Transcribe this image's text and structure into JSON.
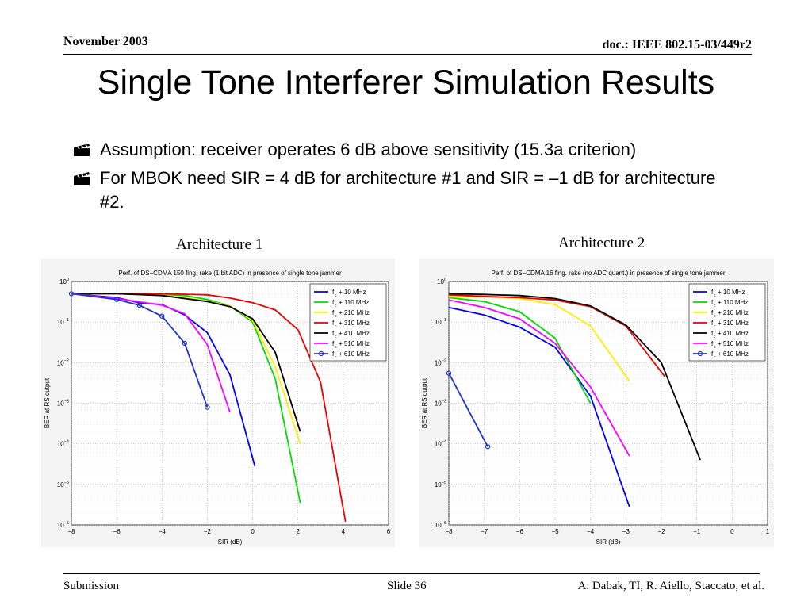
{
  "header": {
    "date": "November 2003",
    "doc": "doc.: IEEE 802.15-03/449r2"
  },
  "slide_title": "Single Tone Interferer Simulation Results",
  "bullets": [
    "Assumption: receiver operates 6 dB above sensitivity (15.3a criterion)",
    "For MBOK need SIR = 4 dB for architecture #1 and SIR = –1 dB for architecture #2."
  ],
  "bullet_icon": "clapperboard-icon",
  "captions": [
    "Architecture 1",
    "Architecture 2"
  ],
  "footer": {
    "left": "Submission",
    "center": "Slide 36",
    "right": "A. Dabak, TI, R. Aiello, Staccato, et al."
  },
  "chart_data": [
    {
      "type": "line",
      "title": "Perf. of DS−CDMA 150 fing. rake (1 bit ADC) in presence of single tone jammer",
      "xlabel": "SIR (dB)",
      "ylabel": "BER at RS output",
      "xlim": [
        -8,
        6
      ],
      "ylim_exp": [
        -6,
        0
      ],
      "yscale": "log",
      "grid": true,
      "legend_position": "top-right",
      "xticks": [
        "−8",
        "−6",
        "−4",
        "−2",
        "0",
        "2",
        "4",
        "6"
      ],
      "series": [
        {
          "name": "+ 10 MHz",
          "color": "#0000ff",
          "marker": false,
          "x": [
            -8,
            -6,
            -5,
            -4,
            -3,
            -2,
            -1,
            0.1
          ],
          "y": [
            0.5,
            0.4,
            0.3,
            0.27,
            0.15,
            0.055,
            0.005,
            2.8e-05
          ]
        },
        {
          "name": "+ 110 MHz",
          "color": "#00dd00",
          "marker": false,
          "x": [
            -8,
            -6,
            -4,
            -3,
            -2,
            -1,
            0,
            1,
            2.1
          ],
          "y": [
            0.5,
            0.5,
            0.48,
            0.45,
            0.36,
            0.25,
            0.1,
            0.004,
            3.5e-06
          ]
        },
        {
          "name": "+ 210 MHz",
          "color": "#ffee00",
          "marker": false,
          "x": [
            -8,
            -6,
            -4,
            -3,
            -2,
            -1,
            0,
            1,
            2.1
          ],
          "y": [
            0.5,
            0.5,
            0.46,
            0.4,
            0.33,
            0.25,
            0.11,
            0.008,
            0.0001
          ]
        },
        {
          "name": "+ 310 MHz",
          "color": "#ee0000",
          "marker": false,
          "x": [
            -8,
            -6,
            -4,
            -2,
            -1,
            0,
            1,
            2,
            3,
            4.1
          ],
          "y": [
            0.5,
            0.5,
            0.5,
            0.47,
            0.39,
            0.3,
            0.2,
            0.065,
            0.0033,
            1.2e-06
          ]
        },
        {
          "name": "+ 410 MHz",
          "color": "#000000",
          "marker": false,
          "x": [
            -8,
            -6,
            -4,
            -3,
            -2,
            -1,
            0,
            1,
            2.1
          ],
          "y": [
            0.5,
            0.5,
            0.45,
            0.38,
            0.32,
            0.24,
            0.12,
            0.018,
            0.0002
          ]
        },
        {
          "name": "+ 510 MHz",
          "color": "#ff00ff",
          "marker": false,
          "x": [
            -8,
            -6,
            -4,
            -3,
            -2,
            -1
          ],
          "y": [
            0.5,
            0.38,
            0.26,
            0.16,
            0.028,
            0.0006
          ]
        },
        {
          "name": "+ 610 MHz",
          "color": "#2233cc",
          "marker": true,
          "x": [
            -8,
            -6,
            -5,
            -4,
            -3,
            -2
          ],
          "y": [
            0.5,
            0.36,
            0.26,
            0.14,
            0.03,
            0.0008
          ]
        }
      ]
    },
    {
      "type": "line",
      "title": "Perf. of DS−CDMA 16 fing. rake (no ADC quant.) in presence of single tone jammer",
      "xlabel": "SIR (dB)",
      "ylabel": "BER at RS output",
      "xlim": [
        -8,
        1
      ],
      "ylim_exp": [
        -6,
        0
      ],
      "yscale": "log",
      "grid": true,
      "legend_position": "top-right",
      "xticks": [
        "−8",
        "−7",
        "−6",
        "−5",
        "−4",
        "−3",
        "−2",
        "−1",
        "0",
        "1"
      ],
      "series": [
        {
          "name": "+ 10 MHz",
          "color": "#0000ff",
          "marker": false,
          "x": [
            -8,
            -7,
            -6,
            -5,
            -4,
            -2.9
          ],
          "y": [
            0.23,
            0.15,
            0.075,
            0.024,
            0.0015,
            2.8e-06
          ]
        },
        {
          "name": "+ 110 MHz",
          "color": "#00dd00",
          "marker": false,
          "x": [
            -8,
            -7,
            -6,
            -5,
            -4
          ],
          "y": [
            0.4,
            0.32,
            0.18,
            0.04,
            0.001
          ]
        },
        {
          "name": "+ 210 MHz",
          "color": "#ffee00",
          "marker": false,
          "x": [
            -8,
            -7,
            -6,
            -5,
            -4,
            -2.9
          ],
          "y": [
            0.42,
            0.42,
            0.38,
            0.27,
            0.08,
            0.0035
          ]
        },
        {
          "name": "+ 310 MHz",
          "color": "#ee0000",
          "marker": false,
          "x": [
            -8,
            -7,
            -6,
            -5,
            -4,
            -3,
            -1.9
          ],
          "y": [
            0.47,
            0.43,
            0.4,
            0.35,
            0.24,
            0.08,
            0.0045
          ]
        },
        {
          "name": "+ 410 MHz",
          "color": "#000000",
          "marker": false,
          "x": [
            -8,
            -7,
            -6,
            -5,
            -4,
            -3,
            -2,
            -0.9
          ],
          "y": [
            0.5,
            0.48,
            0.45,
            0.38,
            0.25,
            0.085,
            0.01,
            4e-05
          ]
        },
        {
          "name": "+ 510 MHz",
          "color": "#ff00ff",
          "marker": false,
          "x": [
            -8,
            -7,
            -6,
            -5,
            -4,
            -2.9
          ],
          "y": [
            0.35,
            0.23,
            0.12,
            0.03,
            0.0025,
            5e-05
          ]
        },
        {
          "name": "+ 610 MHz",
          "color": "#2233cc",
          "marker": true,
          "x": [
            -8,
            -6.9
          ],
          "y": [
            0.0055,
            8.5e-05
          ]
        }
      ]
    }
  ]
}
